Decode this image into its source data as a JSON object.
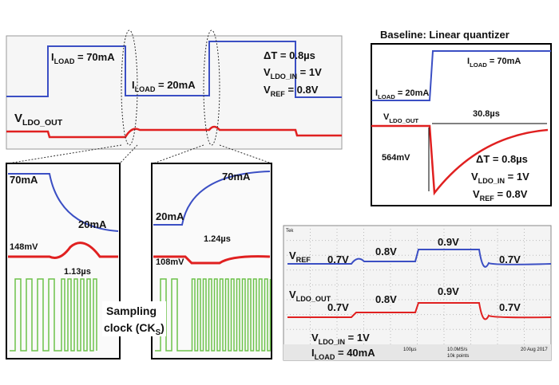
{
  "panel_a": {
    "iload_high": [
      "I",
      "LOAD",
      " = 70mA"
    ],
    "iload_low": [
      "I",
      "LOAD",
      " = 20mA"
    ],
    "delta_t": [
      "ΔT = 0.8µs"
    ],
    "vldo_in": [
      "V",
      "LDO_IN",
      " = 1V"
    ],
    "vref": [
      "V",
      "REF",
      " = 0.8V"
    ],
    "vldo_out": [
      "V",
      "LDO_OUT"
    ]
  },
  "panel_b": {
    "title": [
      "Baseline: Linear quantizer"
    ],
    "iload_high": [
      "I",
      "LOAD",
      " = 70mA"
    ],
    "iload_low": [
      "I",
      "LOAD",
      " = 20mA"
    ],
    "vldo_out": [
      "V",
      "LDO_OUT"
    ],
    "recovery": [
      "30.8µs"
    ],
    "droop": [
      "564mV"
    ],
    "delta_t": [
      "ΔT = 0.8µs"
    ],
    "vldo_in": [
      "V",
      "LDO_IN",
      " = 1V"
    ],
    "vref": [
      "V",
      "REF",
      " = 0.8V"
    ]
  },
  "panel_c": {
    "high": [
      "70mA"
    ],
    "low": [
      "20mA"
    ],
    "droop": [
      "148mV"
    ],
    "time": [
      "1.13µs"
    ]
  },
  "panel_d": {
    "high": [
      "70mA"
    ],
    "low": [
      "20mA"
    ],
    "droop": [
      "108mV"
    ],
    "time": [
      "1.24µs"
    ]
  },
  "sampling": {
    "line1": [
      "Sampling"
    ],
    "line2": [
      "clock (CK",
      "S",
      ")"
    ]
  },
  "panel_e": {
    "vref": [
      "V",
      "REF"
    ],
    "vref_a": [
      "0.7V"
    ],
    "vref_b": [
      "0.8V"
    ],
    "vref_c": [
      "0.9V"
    ],
    "vref_d": [
      "0.7V"
    ],
    "vldo_out": [
      "V",
      "LDO_OUT"
    ],
    "out_a": [
      "0.7V"
    ],
    "out_b": [
      "0.8V"
    ],
    "out_c": [
      "0.9V"
    ],
    "out_d": [
      "0.7V"
    ],
    "vldo_in": [
      "V",
      "LDO_IN",
      " = 1V"
    ],
    "iload": [
      "I",
      "LOAD",
      " = 40mA"
    ],
    "brand": [
      "Tek"
    ],
    "timebase": [
      "100µs"
    ],
    "rate": [
      "10.0MS/s"
    ],
    "points": [
      "10k points"
    ],
    "date": [
      "20 Aug 2017"
    ]
  }
}
